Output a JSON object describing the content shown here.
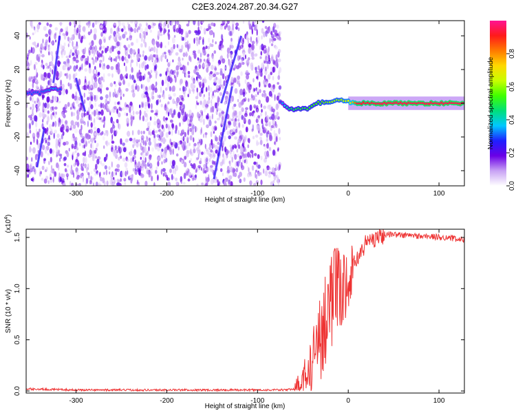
{
  "figure": {
    "title": "C2E3.2024.287.20.34.G27"
  },
  "chart_data": [
    {
      "type": "heatmap",
      "title": "C2E3.2024.287.20.34.G27",
      "xlabel": "Height of straight line (km)",
      "ylabel": "Frequency (Hz)",
      "xlim": [
        -355,
        128
      ],
      "ylim": [
        -49,
        49
      ],
      "x_ticks": [
        -300,
        -200,
        -100,
        0,
        100
      ],
      "x_tick_labels": [
        "-300",
        "-200",
        "-100",
        "0",
        "100"
      ],
      "y_ticks": [
        -40,
        -20,
        0,
        20,
        40
      ],
      "y_tick_labels": [
        "-40",
        "-20",
        "0",
        "20",
        "40"
      ],
      "colorbar": {
        "label": "Normalized spectral amplitude",
        "range": [
          0,
          1
        ],
        "ticks": [
          0,
          0.2,
          0.4,
          0.6,
          0.8
        ],
        "tick_labels": [
          "0.0",
          "0.2",
          "0.4",
          "0.6",
          "0.8"
        ],
        "colors": [
          "#ffffff",
          "#c8a2f4",
          "#6a00e6",
          "#1f1fff",
          "#00c8ff",
          "#00e07a",
          "#40ff00",
          "#c8ff00",
          "#ffd800",
          "#ff7a00",
          "#ff1a1a",
          "#ff1493"
        ]
      },
      "noise_region": {
        "x_range": [
          -355,
          -75
        ],
        "typical_amplitude": 0.15
      },
      "signal_track": [
        {
          "x": -355,
          "y": 6,
          "amp": 0.3
        },
        {
          "x": -340,
          "y": 6,
          "amp": 0.3
        },
        {
          "x": -325,
          "y": 9,
          "amp": 0.35
        },
        {
          "x": -315,
          "y": 8,
          "amp": 0.28
        },
        {
          "x": -75,
          "y": 1,
          "amp": 0.3
        },
        {
          "x": -65,
          "y": -4,
          "amp": 0.45
        },
        {
          "x": -55,
          "y": -3,
          "amp": 0.5
        },
        {
          "x": -45,
          "y": -3,
          "amp": 0.5
        },
        {
          "x": -35,
          "y": 0,
          "amp": 0.55
        },
        {
          "x": -20,
          "y": 1,
          "amp": 0.6
        },
        {
          "x": -10,
          "y": 2,
          "amp": 0.6
        },
        {
          "x": 0,
          "y": 1,
          "amp": 0.65
        },
        {
          "x": 10,
          "y": 0,
          "amp": 0.9
        },
        {
          "x": 40,
          "y": 0,
          "amp": 0.95
        },
        {
          "x": 80,
          "y": 0,
          "amp": 0.95
        },
        {
          "x": 128,
          "y": 0,
          "amp": 0.95
        }
      ]
    },
    {
      "type": "line",
      "xlabel": "Height of straight line (km)",
      "ylabel": "SNR (10 * v/v)",
      "yscale_label": "(x10",
      "yscale_exponent": "4",
      "yscale_close": ")",
      "xlim": [
        -355,
        128
      ],
      "ylim": [
        -0.02,
        1.58
      ],
      "x_ticks": [
        -300,
        -200,
        -100,
        0,
        100
      ],
      "x_tick_labels": [
        "-300",
        "-200",
        "-100",
        "0",
        "100"
      ],
      "y_ticks": [
        0,
        0.5,
        1.0,
        1.5
      ],
      "y_tick_labels": [
        "0.0",
        "0.5",
        "1.0",
        "1.5"
      ],
      "color": "#ee3333",
      "series": [
        {
          "x": [
            -355,
            -300,
            -200,
            -100,
            -70,
            -60,
            -50,
            -45,
            -40,
            -35,
            -30,
            -25,
            -20,
            -15,
            -10,
            -5,
            0,
            5,
            10,
            15,
            20,
            25,
            30,
            35,
            40,
            50,
            60,
            70,
            80,
            90,
            100,
            110,
            120,
            128
          ],
          "y": [
            0.02,
            0.01,
            0.01,
            0.01,
            0.01,
            0.02,
            0.05,
            0.1,
            0.2,
            0.35,
            0.55,
            0.75,
            0.9,
            0.95,
            0.95,
            1.0,
            1.1,
            1.2,
            1.3,
            1.38,
            1.45,
            1.48,
            1.5,
            1.52,
            1.53,
            1.53,
            1.52,
            1.52,
            1.51,
            1.51,
            1.5,
            1.5,
            1.48,
            1.48
          ]
        }
      ]
    }
  ]
}
